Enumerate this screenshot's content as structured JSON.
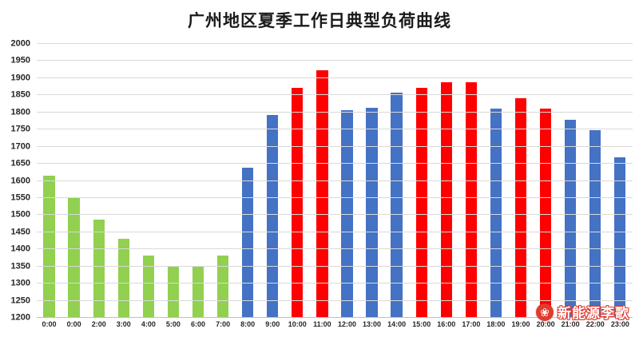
{
  "watermark": {
    "text": "新能源李歌",
    "icon": "flower-logo-icon",
    "icon_glyph": "❀",
    "icon_color": "#e23b2e"
  },
  "chart_data": {
    "type": "bar",
    "title": "广州地区夏季工作日典型负荷曲线",
    "xlabel": "",
    "ylabel": "",
    "categories": [
      "0:00",
      "0:00",
      "2:00",
      "3:00",
      "4:00",
      "5:00",
      "6:00",
      "7:00",
      "8:00",
      "9:00",
      "10:00",
      "11:00",
      "12:00",
      "13:00",
      "14:00",
      "15:00",
      "16:00",
      "17:00",
      "18:00",
      "19:00",
      "20:00",
      "21:00",
      "22:00",
      "23:00"
    ],
    "values": [
      1615,
      1550,
      1487,
      1430,
      1382,
      1350,
      1350,
      1382,
      1638,
      1793,
      1872,
      1922,
      1807,
      1813,
      1857,
      1872,
      1887,
      1887,
      1812,
      1841,
      1810,
      1778,
      1747,
      1670
    ],
    "bar_colors": [
      "green",
      "green",
      "green",
      "green",
      "green",
      "green",
      "green",
      "green",
      "blue",
      "blue",
      "red",
      "red",
      "blue",
      "blue",
      "blue",
      "red",
      "red",
      "red",
      "blue",
      "red",
      "red",
      "blue",
      "blue",
      "blue"
    ],
    "colors": {
      "green": "#92d050",
      "blue": "#4472c4",
      "red": "#ff0000"
    },
    "ylim": [
      1200,
      2000
    ],
    "ytick_step": 50,
    "grid": true,
    "legend_position": "none"
  }
}
